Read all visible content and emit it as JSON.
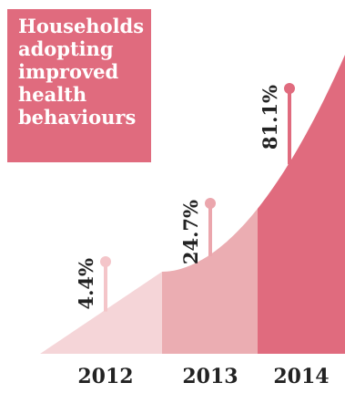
{
  "chart_data": {
    "type": "area",
    "title": "Households adopting improved health behaviours",
    "categories": [
      "2012",
      "2013",
      "2014"
    ],
    "values": [
      4.4,
      24.7,
      81.1
    ],
    "value_labels": [
      "4.4%",
      "24.7%",
      "81.1%"
    ],
    "unit": "%",
    "grid": false,
    "legend": "none"
  },
  "colors": {
    "title_box": "#e06b7e",
    "title_text": "#ffffff",
    "segments": [
      "#f5d5d8",
      "#ebadb2",
      "#e06b7e"
    ],
    "lollipops": [
      "#f4c5c9",
      "#eba6ad",
      "#e06b7e"
    ],
    "label_text": "#222222"
  }
}
